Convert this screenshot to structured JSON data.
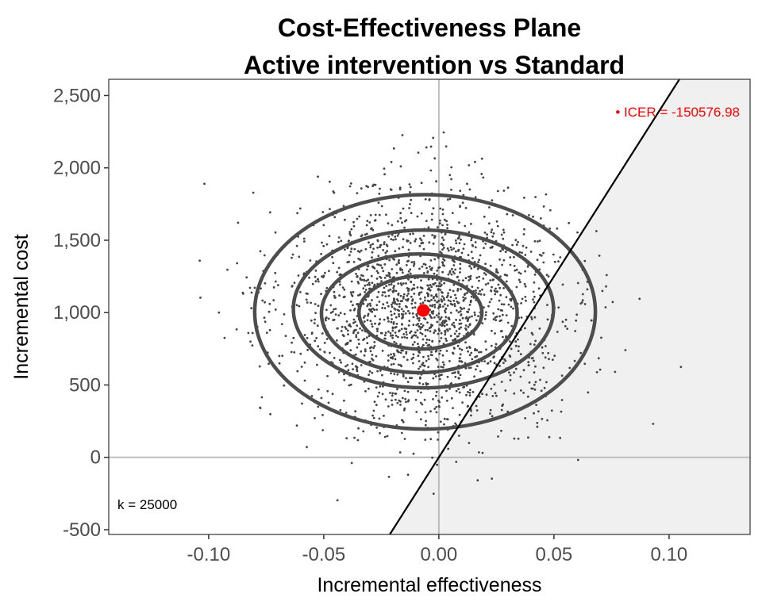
{
  "chart_data": {
    "type": "scatter",
    "title": "Cost-Effectiveness Plane",
    "subtitle": "Active intervention vs Standard",
    "xlabel": "Incremental effectiveness",
    "ylabel": "Incremental cost",
    "xlim": [
      -0.1434,
      0.1352
    ],
    "ylim": [
      -533,
      2612
    ],
    "x_ticks": [
      -0.1,
      -0.05,
      0.0,
      0.05,
      0.1
    ],
    "x_tick_labels": [
      "-0.10",
      "-0.05",
      "0.00",
      "0.05",
      "0.10"
    ],
    "y_ticks": [
      -500,
      0,
      500,
      1000,
      1500,
      2000,
      2500
    ],
    "y_tick_labels": [
      "-500",
      "0",
      "500",
      "1,000",
      "1,500",
      "2,000",
      "2,500"
    ],
    "grid": false,
    "wtp_threshold": 25000,
    "wtp_label": "k = 25000",
    "icer_label": "• ICER = -150576.98",
    "icer_point": {
      "x": -0.00674,
      "y": 1015
    },
    "simulations": {
      "n": 2000,
      "mean_x": -0.0067,
      "mean_y": 1015,
      "sd_x": 0.03,
      "sd_y": 420,
      "seed": 7
    },
    "contours": [
      {
        "cx": -0.006,
        "cy": 1005,
        "rx": 0.074,
        "ry": 810
      },
      {
        "cx": -0.0067,
        "cy": 1025,
        "rx": 0.0565,
        "ry": 545
      },
      {
        "cx": -0.0085,
        "cy": 995,
        "rx": 0.0425,
        "ry": 410
      },
      {
        "cx": -0.008,
        "cy": 1000,
        "rx": 0.0267,
        "ry": 252
      }
    ],
    "colors": {
      "points": "#444444",
      "icer": "#ff0000",
      "region": "#f0f0f0",
      "line": "#000000",
      "contour": "#4d4d4d",
      "axisline": "#bdbdbd"
    }
  }
}
